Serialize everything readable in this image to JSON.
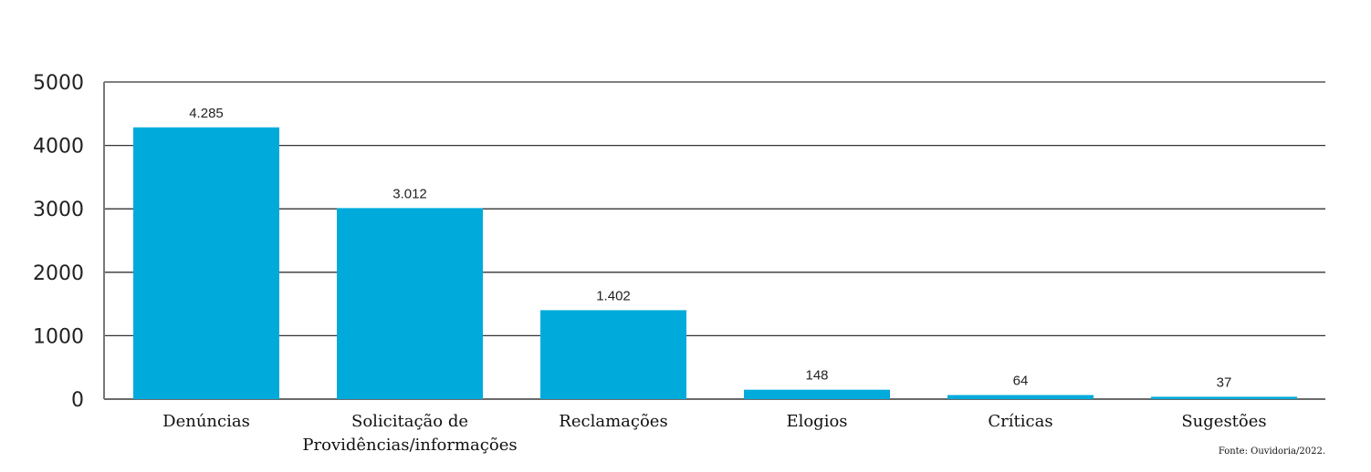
{
  "chart_data": {
    "type": "bar",
    "title": "",
    "xlabel": "",
    "ylabel": "",
    "categories": [
      [
        "Denúncias"
      ],
      [
        "Solicitação de",
        "Providências/informações"
      ],
      [
        "Reclamações"
      ],
      [
        "Elogios"
      ],
      [
        "Críticas"
      ],
      [
        "Sugestões"
      ]
    ],
    "values": [
      4285,
      3012,
      1402,
      148,
      64,
      37
    ],
    "data_labels": [
      "4.285",
      "3.012",
      "1.402",
      "148",
      "64",
      "37"
    ],
    "ylim": [
      0,
      5000
    ],
    "yticks": [
      0,
      1000,
      2000,
      3000,
      4000,
      5000
    ],
    "ytick_labels": [
      "0",
      "1000",
      "2000",
      "3000",
      "4000",
      "5000"
    ],
    "grid": true,
    "bar_color": "#00abdc",
    "source": "Fonte: Ouvidoria/2022."
  }
}
